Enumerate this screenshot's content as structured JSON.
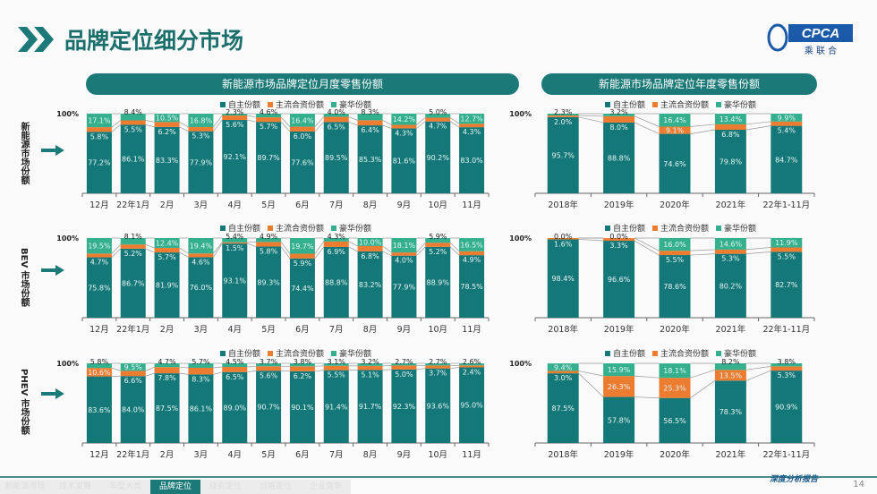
{
  "title": "品牌定位细分市场",
  "logo_text": "CPCA 乘联合",
  "panel_titles": {
    "monthly": "新能源市场品牌定位月度零售份额",
    "yearly": "新能源市场品牌定位年度零售份额"
  },
  "legend": [
    "自主份额",
    "主流合资份额",
    "豪华份额"
  ],
  "row_labels": [
    "新能源市场份额",
    "BEV 市场份额",
    "PHEV 市场份额"
  ],
  "colors": {
    "domestic": "#157878",
    "jv": "#ec7c30",
    "luxury": "#34b08e",
    "header": "#1b7a78"
  },
  "nav": [
    "新能源市场",
    "技术发展",
    "车型大类",
    "品牌定位",
    "级别定位",
    "价格定位",
    "企业竞争"
  ],
  "nav_active": 3,
  "brand_footer": "深度分析报告",
  "page_number": "14",
  "chart_data": [
    {
      "type": "bar",
      "stacked": true,
      "name_row": "新能源",
      "ytick": "100%",
      "ylim": [
        0,
        100
      ],
      "categories": [
        "12月",
        "22年1月",
        "2月",
        "3月",
        "4月",
        "5月",
        "6月",
        "7月",
        "8月",
        "9月",
        "10月",
        "11月"
      ],
      "series": [
        {
          "name": "自主份额",
          "values": [
            77.2,
            86.1,
            83.3,
            77.9,
            92.1,
            89.7,
            77.6,
            89.5,
            85.3,
            81.6,
            90.2,
            83.0
          ]
        },
        {
          "name": "主流合资份额",
          "values": [
            5.8,
            5.5,
            6.2,
            5.3,
            5.6,
            5.7,
            6.0,
            6.5,
            6.4,
            4.3,
            4.7,
            4.3
          ]
        },
        {
          "name": "豪华份额",
          "values": [
            17.1,
            8.4,
            10.5,
            16.8,
            2.3,
            4.6,
            16.4,
            4.0,
            8.3,
            14.2,
            5.0,
            12.7
          ]
        }
      ]
    },
    {
      "type": "bar",
      "stacked": true,
      "ytick": "100%",
      "ylim": [
        0,
        100
      ],
      "categories": [
        "2018年",
        "2019年",
        "2020年",
        "2021年",
        "22年1-11月"
      ],
      "series": [
        {
          "name": "自主份额",
          "values": [
            95.7,
            88.8,
            74.6,
            79.8,
            84.7
          ]
        },
        {
          "name": "主流合资份额",
          "values": [
            2.0,
            8.0,
            9.1,
            6.8,
            5.4
          ]
        },
        {
          "name": "豪华份额",
          "values": [
            2.3,
            3.2,
            16.4,
            13.4,
            9.9
          ]
        }
      ]
    },
    {
      "type": "bar",
      "stacked": true,
      "ytick": "100%",
      "ylim": [
        0,
        100
      ],
      "categories": [
        "12月",
        "22年1月",
        "2月",
        "3月",
        "4月",
        "5月",
        "6月",
        "7月",
        "8月",
        "9月",
        "10月",
        "11月"
      ],
      "series": [
        {
          "name": "自主份额",
          "values": [
            75.8,
            86.7,
            81.9,
            76.0,
            93.1,
            89.3,
            74.4,
            88.8,
            83.2,
            77.9,
            88.9,
            78.5
          ]
        },
        {
          "name": "主流合资份额",
          "values": [
            4.7,
            5.2,
            5.7,
            4.6,
            1.5,
            5.8,
            5.9,
            6.9,
            6.8,
            4.0,
            5.2,
            4.9
          ]
        },
        {
          "name": "豪华份额",
          "values": [
            19.5,
            8.1,
            12.4,
            19.4,
            5.4,
            4.9,
            19.7,
            4.3,
            10.0,
            18.1,
            5.9,
            16.5
          ]
        }
      ]
    },
    {
      "type": "bar",
      "stacked": true,
      "ytick": "100%",
      "ylim": [
        0,
        100
      ],
      "categories": [
        "2018年",
        "2019年",
        "2020年",
        "2021年",
        "22年1-11月"
      ],
      "series": [
        {
          "name": "自主份额",
          "values": [
            98.4,
            96.6,
            78.6,
            80.2,
            82.7
          ]
        },
        {
          "name": "主流合资份额",
          "values": [
            1.6,
            3.3,
            5.5,
            5.3,
            5.5
          ]
        },
        {
          "name": "豪华份额",
          "values": [
            0.0,
            0.0,
            16.0,
            14.6,
            11.9
          ]
        }
      ]
    },
    {
      "type": "bar",
      "stacked": true,
      "ytick": "100%",
      "ylim": [
        0,
        100
      ],
      "categories": [
        "12月",
        "22年1月",
        "2月",
        "3月",
        "4月",
        "5月",
        "6月",
        "7月",
        "8月",
        "9月",
        "10月",
        "11月"
      ],
      "series": [
        {
          "name": "自主份额",
          "values": [
            83.6,
            84.0,
            87.5,
            86.1,
            89.0,
            90.7,
            90.1,
            91.4,
            91.7,
            92.3,
            93.6,
            95.0
          ]
        },
        {
          "name": "主流合资份额",
          "values": [
            10.6,
            6.6,
            7.8,
            8.3,
            6.5,
            5.6,
            6.2,
            5.5,
            5.1,
            5.0,
            3.7,
            2.4
          ]
        },
        {
          "name": "豪华份额",
          "values": [
            5.8,
            9.5,
            4.7,
            5.7,
            4.5,
            3.7,
            3.8,
            3.1,
            3.2,
            2.7,
            2.7,
            2.6
          ]
        }
      ]
    },
    {
      "type": "bar",
      "stacked": true,
      "ytick": "100%",
      "ylim": [
        0,
        100
      ],
      "categories": [
        "2018年",
        "2019年",
        "2020年",
        "2021年",
        "22年1-11月"
      ],
      "series": [
        {
          "name": "自主份额",
          "values": [
            87.5,
            57.8,
            56.5,
            78.3,
            90.9
          ]
        },
        {
          "name": "主流合资份额",
          "values": [
            3.0,
            26.3,
            25.3,
            13.5,
            5.3
          ]
        },
        {
          "name": "豪华份额",
          "values": [
            9.4,
            15.9,
            18.1,
            8.2,
            3.8
          ]
        }
      ]
    }
  ]
}
